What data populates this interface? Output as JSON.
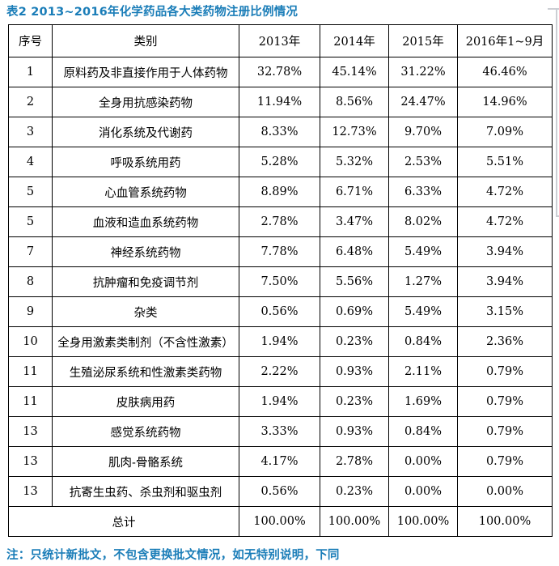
{
  "title": "表2 2013~2016年化学药品各大类药物注册比例情况",
  "footnote": "注：只统计新批文，不包含更换批文情况，如无特别说明，下同",
  "colors": {
    "heading_text": "#1a7db8",
    "table_border": "#000000",
    "cell_text": "#000000",
    "frame_edge": "#cccfd4",
    "background": "#ffffff"
  },
  "table": {
    "headers": [
      "序号",
      "类别",
      "2013年",
      "2014年",
      "2015年",
      "2016年1~9月"
    ],
    "rows": [
      {
        "no": "1",
        "category": "原料药及非直接作用于人体药物",
        "values": [
          "32.78%",
          "45.14%",
          "31.22%",
          "46.46%"
        ]
      },
      {
        "no": "2",
        "category": "全身用抗感染药物",
        "values": [
          "11.94%",
          "8.56%",
          "24.47%",
          "14.96%"
        ]
      },
      {
        "no": "3",
        "category": "消化系统及代谢药",
        "values": [
          "8.33%",
          "12.73%",
          "9.70%",
          "7.09%"
        ]
      },
      {
        "no": "4",
        "category": "呼吸系统用药",
        "values": [
          "5.28%",
          "5.32%",
          "2.53%",
          "5.51%"
        ]
      },
      {
        "no": "5",
        "category": "心血管系统药物",
        "values": [
          "8.89%",
          "6.71%",
          "6.33%",
          "4.72%"
        ]
      },
      {
        "no": "5",
        "category": "血液和造血系统药物",
        "values": [
          "2.78%",
          "3.47%",
          "8.02%",
          "4.72%"
        ]
      },
      {
        "no": "7",
        "category": "神经系统药物",
        "values": [
          "7.78%",
          "6.48%",
          "5.49%",
          "3.94%"
        ]
      },
      {
        "no": "8",
        "category": "抗肿瘤和免疫调节剂",
        "values": [
          "7.50%",
          "5.56%",
          "1.27%",
          "3.94%"
        ]
      },
      {
        "no": "9",
        "category": "杂类",
        "values": [
          "0.56%",
          "0.69%",
          "5.49%",
          "3.15%"
        ]
      },
      {
        "no": "10",
        "category": "全身用激素类制剂（不含性激素）",
        "values": [
          "1.94%",
          "0.23%",
          "0.84%",
          "2.36%"
        ]
      },
      {
        "no": "11",
        "category": "生殖泌尿系统和性激素类药物",
        "values": [
          "2.22%",
          "0.93%",
          "2.11%",
          "0.79%"
        ]
      },
      {
        "no": "11",
        "category": "皮肤病用药",
        "values": [
          "1.94%",
          "0.23%",
          "1.69%",
          "0.79%"
        ]
      },
      {
        "no": "13",
        "category": "感觉系统药物",
        "values": [
          "3.33%",
          "0.93%",
          "0.84%",
          "0.79%"
        ]
      },
      {
        "no": "13",
        "category": "肌肉-骨骼系统",
        "values": [
          "4.17%",
          "2.78%",
          "0.00%",
          "0.79%"
        ]
      },
      {
        "no": "13",
        "category": "抗寄生虫药、杀虫剂和驱虫剂",
        "values": [
          "0.56%",
          "0.23%",
          "0.00%",
          "0.00%"
        ]
      }
    ],
    "total": {
      "label": "总计",
      "values": [
        "100.00%",
        "100.00%",
        "100.00%",
        "100.00%"
      ]
    }
  }
}
